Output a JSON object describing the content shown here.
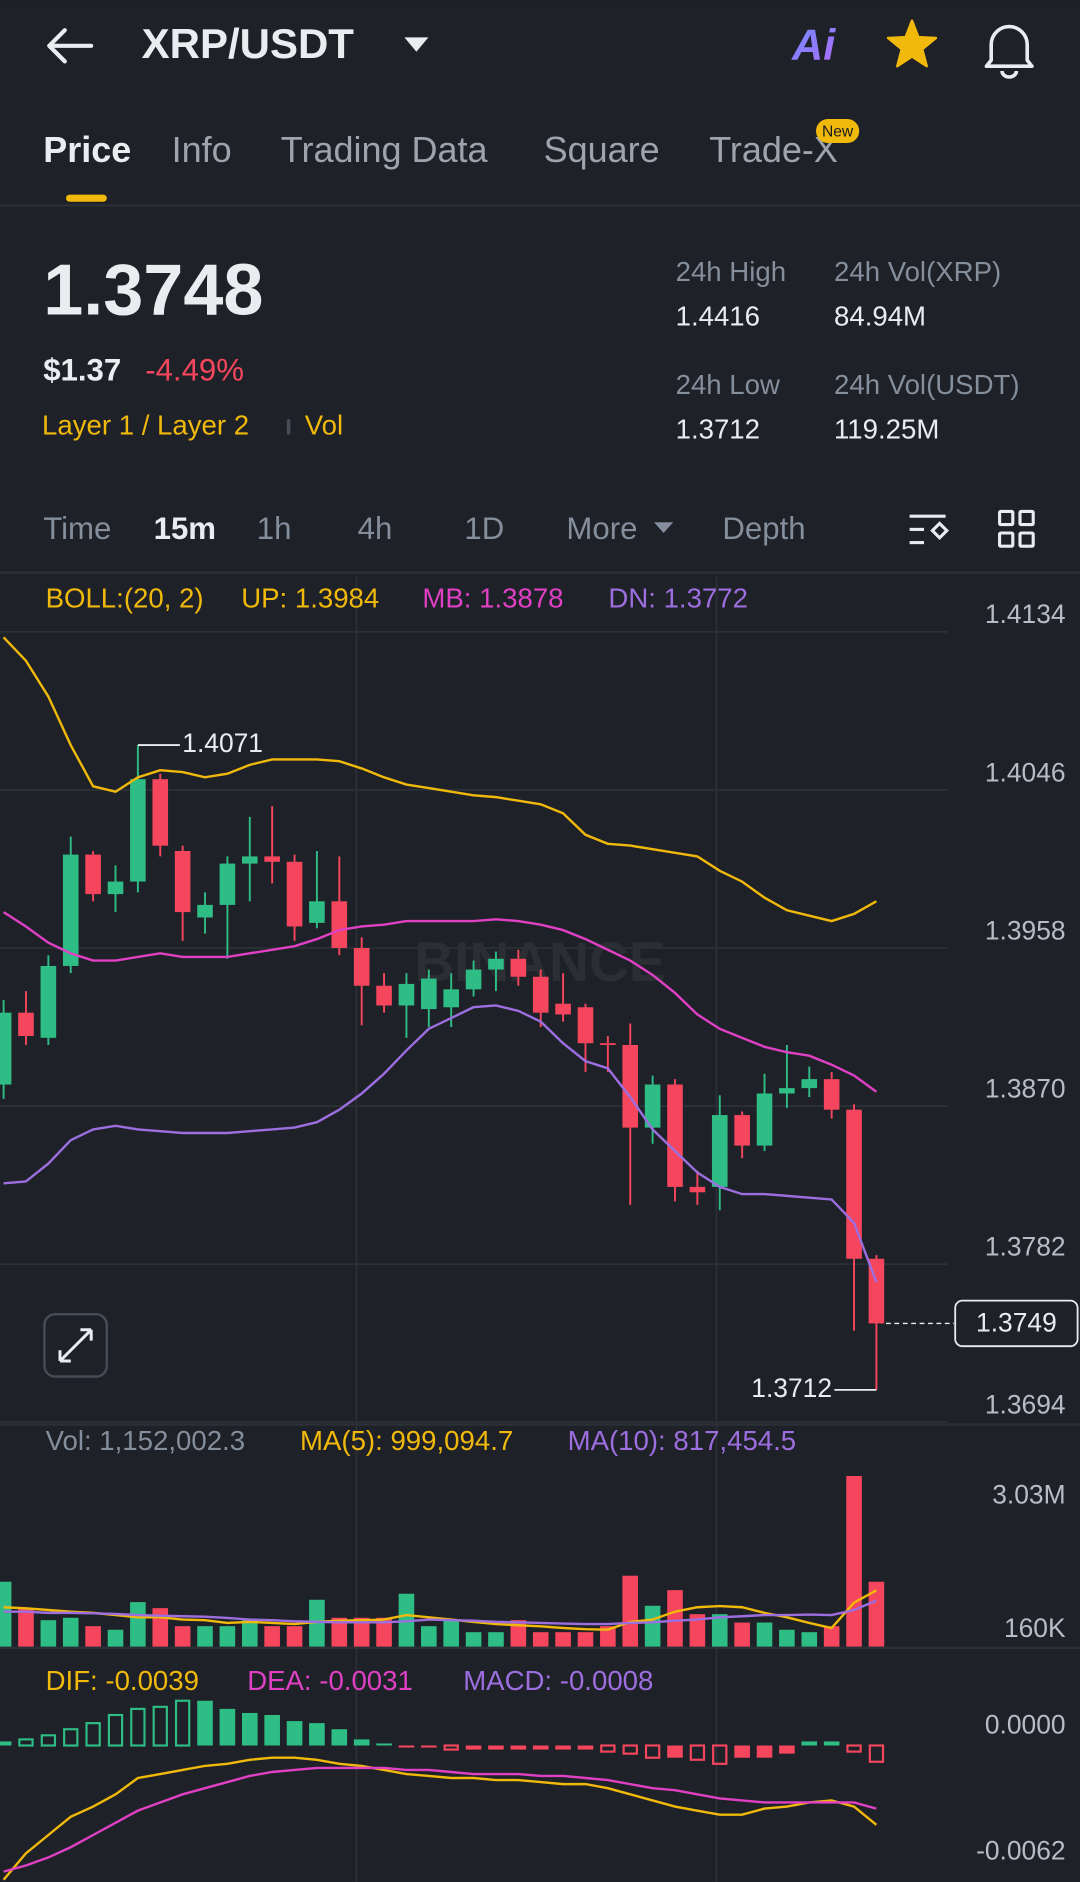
{
  "app": {
    "pair": "XRP/USDT",
    "ai": "Ai",
    "tabs": [
      "Price",
      "Info",
      "Trading Data",
      "Square",
      "Trade-X"
    ],
    "badge": "New",
    "price": 1.3748,
    "fiat": "$1.37",
    "change": "-4.49%",
    "tags": [
      "Layer 1 / Layer 2",
      "Vol"
    ],
    "stats": [
      {
        "label": "24h High",
        "value": 1.4416
      },
      {
        "label": "24h Vol(XRP)",
        "value": "84.94M"
      },
      {
        "label": "24h Low",
        "value": 1.3712
      },
      {
        "label": "24h Vol(USDT)",
        "value": "119.25M"
      }
    ],
    "intervals": [
      "Time",
      "15m",
      "1h",
      "4h",
      "1D",
      "More",
      "Depth"
    ],
    "watermark": "BINANCE"
  },
  "chart_data": [
    {
      "type": "candlestick",
      "indicator": "BOLL:(20, 2)",
      "indicator_color": "#f0b90b",
      "up_color": "#2ebd85",
      "down_color": "#f6465d",
      "grid": true,
      "categories": [
        null,
        null,
        null,
        null,
        null,
        null,
        null,
        null,
        null,
        null,
        null,
        null,
        null,
        null,
        null,
        null,
        null,
        null,
        null,
        null,
        null,
        null,
        null,
        null,
        null,
        null,
        null,
        null,
        null,
        null,
        null,
        null,
        null,
        null,
        null,
        null,
        null,
        null,
        null,
        null
      ],
      "open": [
        1.3882,
        1.3922,
        1.3908,
        1.3948,
        1.401,
        1.3988,
        1.3995,
        1.4052,
        1.4012,
        1.3975,
        1.3982,
        1.4005,
        1.4009,
        1.4006,
        1.3972,
        1.3984,
        1.3958,
        1.3937,
        1.3926,
        1.3924,
        1.3925,
        1.3935,
        1.3946,
        1.3952,
        1.3942,
        1.3927,
        1.3925,
        1.3905,
        1.3904,
        1.3858,
        1.3882,
        1.3825,
        1.3825,
        1.3865,
        1.3848,
        1.3877,
        1.388,
        1.3885,
        1.3868,
        1.3785
      ],
      "high": [
        1.3929,
        1.3934,
        1.3954,
        1.402,
        1.4012,
        1.4004,
        1.4071,
        1.4055,
        1.4015,
        1.3989,
        1.4009,
        1.4031,
        1.4037,
        1.401,
        1.4012,
        1.4009,
        1.3964,
        1.3944,
        1.3944,
        1.3946,
        1.3944,
        1.3951,
        1.3956,
        1.3957,
        1.3946,
        1.3944,
        1.3927,
        1.3909,
        1.3916,
        1.3887,
        1.3885,
        1.3834,
        1.3876,
        1.3867,
        1.3888,
        1.3904,
        1.3892,
        1.3889,
        1.3871,
        1.3787
      ],
      "low": [
        1.3874,
        1.3904,
        1.3904,
        1.3944,
        1.3984,
        1.3978,
        1.3989,
        1.4009,
        1.3962,
        1.3966,
        1.3952,
        1.3984,
        1.3994,
        1.3962,
        1.3969,
        1.3954,
        1.3915,
        1.3922,
        1.3908,
        1.3914,
        1.3914,
        1.3931,
        1.3934,
        1.3937,
        1.3914,
        1.3917,
        1.3889,
        1.3889,
        1.3815,
        1.3849,
        1.3817,
        1.3815,
        1.3812,
        1.3841,
        1.3845,
        1.3869,
        1.3875,
        1.3863,
        1.3745,
        1.3712
      ],
      "close": [
        1.3922,
        1.3909,
        1.3948,
        1.401,
        1.3988,
        1.3995,
        1.4052,
        1.4015,
        1.3978,
        1.3982,
        1.4005,
        1.4009,
        1.4006,
        1.397,
        1.3984,
        1.3958,
        1.3937,
        1.3926,
        1.3938,
        1.3941,
        1.3935,
        1.3946,
        1.3952,
        1.3942,
        1.3922,
        1.3921,
        1.3905,
        1.3904,
        1.3858,
        1.3882,
        1.3825,
        1.3822,
        1.3865,
        1.3848,
        1.3877,
        1.388,
        1.3885,
        1.3868,
        1.3785,
        1.3749
      ],
      "series": [
        {
          "name": "UP: 1.3984",
          "color": "#f0b90b",
          "values": [
            1.4131,
            1.4118,
            1.4098,
            1.4071,
            1.4048,
            1.4045,
            1.4053,
            1.4057,
            1.4056,
            1.4053,
            1.4055,
            1.406,
            1.4063,
            1.4063,
            1.4063,
            1.4062,
            1.4058,
            1.4053,
            1.4049,
            1.4047,
            1.4045,
            1.4043,
            1.4042,
            1.404,
            1.4038,
            1.4033,
            1.4021,
            1.4016,
            1.4015,
            1.4013,
            1.4011,
            1.4009,
            1.4001,
            1.3995,
            1.3986,
            1.3979,
            1.3976,
            1.3973,
            1.3977,
            1.3984
          ]
        },
        {
          "name": "MB: 1.3878",
          "color": "#e040c4",
          "values": [
            1.3978,
            1.397,
            1.3961,
            1.3955,
            1.3951,
            1.3951,
            1.3953,
            1.3955,
            1.3953,
            1.3953,
            1.3953,
            1.3955,
            1.3957,
            1.3959,
            1.3963,
            1.3968,
            1.397,
            1.3971,
            1.3973,
            1.3973,
            1.3973,
            1.3973,
            1.3974,
            1.3973,
            1.3971,
            1.3968,
            1.3963,
            1.3957,
            1.3951,
            1.3943,
            1.3933,
            1.3921,
            1.3913,
            1.3908,
            1.3903,
            1.39,
            1.3898,
            1.3893,
            1.3887,
            1.3878
          ]
        },
        {
          "name": "DN: 1.3772",
          "color": "#9d6ee0",
          "values": [
            1.3827,
            1.3828,
            1.3838,
            1.3851,
            1.3857,
            1.3859,
            1.3857,
            1.3856,
            1.3855,
            1.3855,
            1.3855,
            1.3856,
            1.3857,
            1.3858,
            1.3861,
            1.3868,
            1.3877,
            1.3888,
            1.3901,
            1.3913,
            1.3919,
            1.3925,
            1.3926,
            1.3923,
            1.3917,
            1.3905,
            1.3895,
            1.3891,
            1.3875,
            1.3857,
            1.3845,
            1.3833,
            1.3825,
            1.3821,
            1.3821,
            1.382,
            1.3819,
            1.3818,
            1.3805,
            1.3772
          ]
        }
      ],
      "ylim": [
        1.3694,
        1.4165
      ],
      "yticks": [
        1.4134,
        1.4046,
        1.3958,
        {
          "value": 1.387,
          "label": "1.3870"
        },
        1.3782,
        1.3694
      ]
    },
    {
      "type": "bar",
      "name": "Vol: 1,152,002.3",
      "grid": false,
      "values": [
        1152000,
        683000,
        469000,
        512000,
        363000,
        299000,
        790000,
        683000,
        363000,
        363000,
        363000,
        469000,
        363000,
        363000,
        832000,
        512000,
        512000,
        512000,
        939000,
        363000,
        469000,
        256000,
        256000,
        469000,
        256000,
        256000,
        256000,
        363000,
        1259000,
        725000,
        1003000,
        576000,
        576000,
        427000,
        427000,
        299000,
        256000,
        363000,
        3030000,
        1152002.3
      ],
      "series": [
        {
          "name": "MA(5): 999,094.7",
          "color": "#f0b90b",
          "values": [
            700000,
            680000,
            650000,
            620000,
            600000,
            560000,
            520000,
            520000,
            480000,
            470000,
            420000,
            440000,
            420000,
            400000,
            440000,
            460000,
            470000,
            480000,
            560000,
            520000,
            480000,
            440000,
            400000,
            380000,
            360000,
            330000,
            310000,
            300000,
            440000,
            480000,
            620000,
            700000,
            720000,
            700000,
            600000,
            520000,
            420000,
            330000,
            780000,
            999094.7
          ]
        },
        {
          "name": "MA(10): 817,454.5",
          "color": "#9d6ee0",
          "values": [
            620000,
            620000,
            600000,
            600000,
            590000,
            580000,
            560000,
            550000,
            540000,
            530000,
            510000,
            480000,
            470000,
            450000,
            440000,
            430000,
            430000,
            430000,
            450000,
            480000,
            470000,
            460000,
            440000,
            430000,
            420000,
            410000,
            400000,
            400000,
            420000,
            430000,
            460000,
            480000,
            520000,
            540000,
            560000,
            560000,
            570000,
            560000,
            650000,
            817454.5
          ]
        }
      ],
      "ylim": [
        0,
        3240000
      ],
      "yticks": [
        {
          "value": 3030000,
          "label": "3.03M"
        },
        {
          "value": 160000,
          "label": "160K"
        }
      ]
    },
    {
      "type": "bar",
      "name": "MACD: -0.0008",
      "color": "#9d6ee0",
      "grid": false,
      "values": [
        0.0002,
        0.0003,
        0.0005,
        0.0008,
        0.0011,
        0.0015,
        0.0018,
        0.0019,
        0.0022,
        0.0022,
        0.0018,
        0.0016,
        0.0015,
        0.0012,
        0.0011,
        0.0008,
        0.0003,
        0.0001,
        -0.0001,
        -0.0001,
        -0.0002,
        -0.0002,
        -0.0002,
        -0.0002,
        -0.0002,
        -0.0002,
        -0.0002,
        -0.0003,
        -0.0004,
        -0.0006,
        -0.0006,
        -0.0007,
        -0.0009,
        -0.0006,
        -0.0006,
        -0.0004,
        0.0002,
        0.0002,
        -0.0003,
        -0.0008
      ],
      "series": [
        {
          "name": "DIF: -0.0039",
          "color": "#f0b90b",
          "values": [
            -0.0066,
            -0.0053,
            -0.0044,
            -0.0035,
            -0.003,
            -0.0024,
            -0.0016,
            -0.0014,
            -0.0012,
            -0.001,
            -0.0009,
            -0.0007,
            -0.0006,
            -0.0006,
            -0.0007,
            -0.0009,
            -0.001,
            -0.0012,
            -0.0014,
            -0.0015,
            -0.0016,
            -0.0016,
            -0.0017,
            -0.0017,
            -0.0018,
            -0.0019,
            -0.0019,
            -0.0021,
            -0.0024,
            -0.0027,
            -0.003,
            -0.0032,
            -0.0034,
            -0.0034,
            -0.0031,
            -0.003,
            -0.0028,
            -0.0027,
            -0.003,
            -0.0039
          ]
        },
        {
          "name": "DEA: -0.0031",
          "color": "#e040c4",
          "values": [
            -0.0062,
            -0.0059,
            -0.0055,
            -0.005,
            -0.0044,
            -0.0038,
            -0.0032,
            -0.0028,
            -0.0024,
            -0.0021,
            -0.0018,
            -0.0015,
            -0.0013,
            -0.0012,
            -0.0011,
            -0.0011,
            -0.0011,
            -0.0011,
            -0.0012,
            -0.0012,
            -0.0013,
            -0.0014,
            -0.0014,
            -0.0014,
            -0.0015,
            -0.0015,
            -0.0016,
            -0.0017,
            -0.0019,
            -0.0021,
            -0.0022,
            -0.0024,
            -0.0026,
            -0.0027,
            -0.0028,
            -0.0028,
            -0.0028,
            -0.0028,
            -0.0028,
            -0.0031
          ]
        }
      ],
      "ylim": [
        -0.0067,
        0.0038
      ],
      "yticks": [
        {
          "value": 0,
          "label": "0.0000"
        },
        {
          "value": -0.0062,
          "label": "-0.0062"
        }
      ]
    }
  ]
}
